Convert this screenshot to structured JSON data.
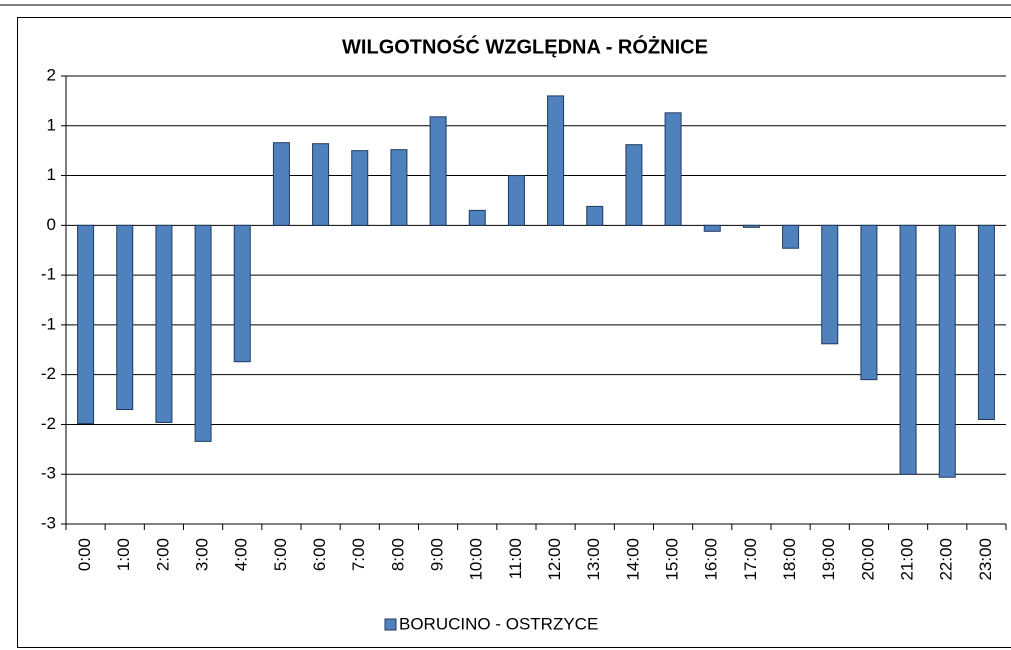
{
  "chart_data": {
    "type": "bar",
    "title": "WILGOTNOŚĆ WZGLĘDNA - RÓŻNICE",
    "categories": [
      "0:00",
      "1:00",
      "2:00",
      "3:00",
      "4:00",
      "5:00",
      "6:00",
      "7:00",
      "8:00",
      "9:00",
      "10:00",
      "11:00",
      "12:00",
      "13:00",
      "14:00",
      "15:00",
      "16:00",
      "17:00",
      "18:00",
      "19:00",
      "20:00",
      "21:00",
      "22:00",
      "23:00"
    ],
    "series": [
      {
        "name": "BORUCINO - OSTRZYCE",
        "color": "#4f81bd",
        "values": [
          -1.99,
          -1.85,
          -1.98,
          -2.17,
          -1.37,
          0.83,
          0.82,
          0.75,
          0.76,
          1.09,
          0.15,
          0.5,
          1.3,
          0.19,
          0.81,
          1.13,
          -0.06,
          -0.02,
          -0.23,
          -1.19,
          -1.55,
          -2.5,
          -2.53,
          -1.95
        ]
      }
    ],
    "ylim": [
      -3,
      1.5
    ],
    "yticks": [
      -3,
      {
        "value": -2.5,
        "label": "-3"
      },
      -2,
      {
        "value": -1.5,
        "label": "-2"
      },
      -1,
      {
        "value": -0.5,
        "label": "-1"
      },
      0,
      {
        "value": 0.5,
        "label": "1"
      },
      1,
      {
        "value": 1.5,
        "label": "2"
      }
    ],
    "grid": true,
    "legend": "bottom"
  }
}
